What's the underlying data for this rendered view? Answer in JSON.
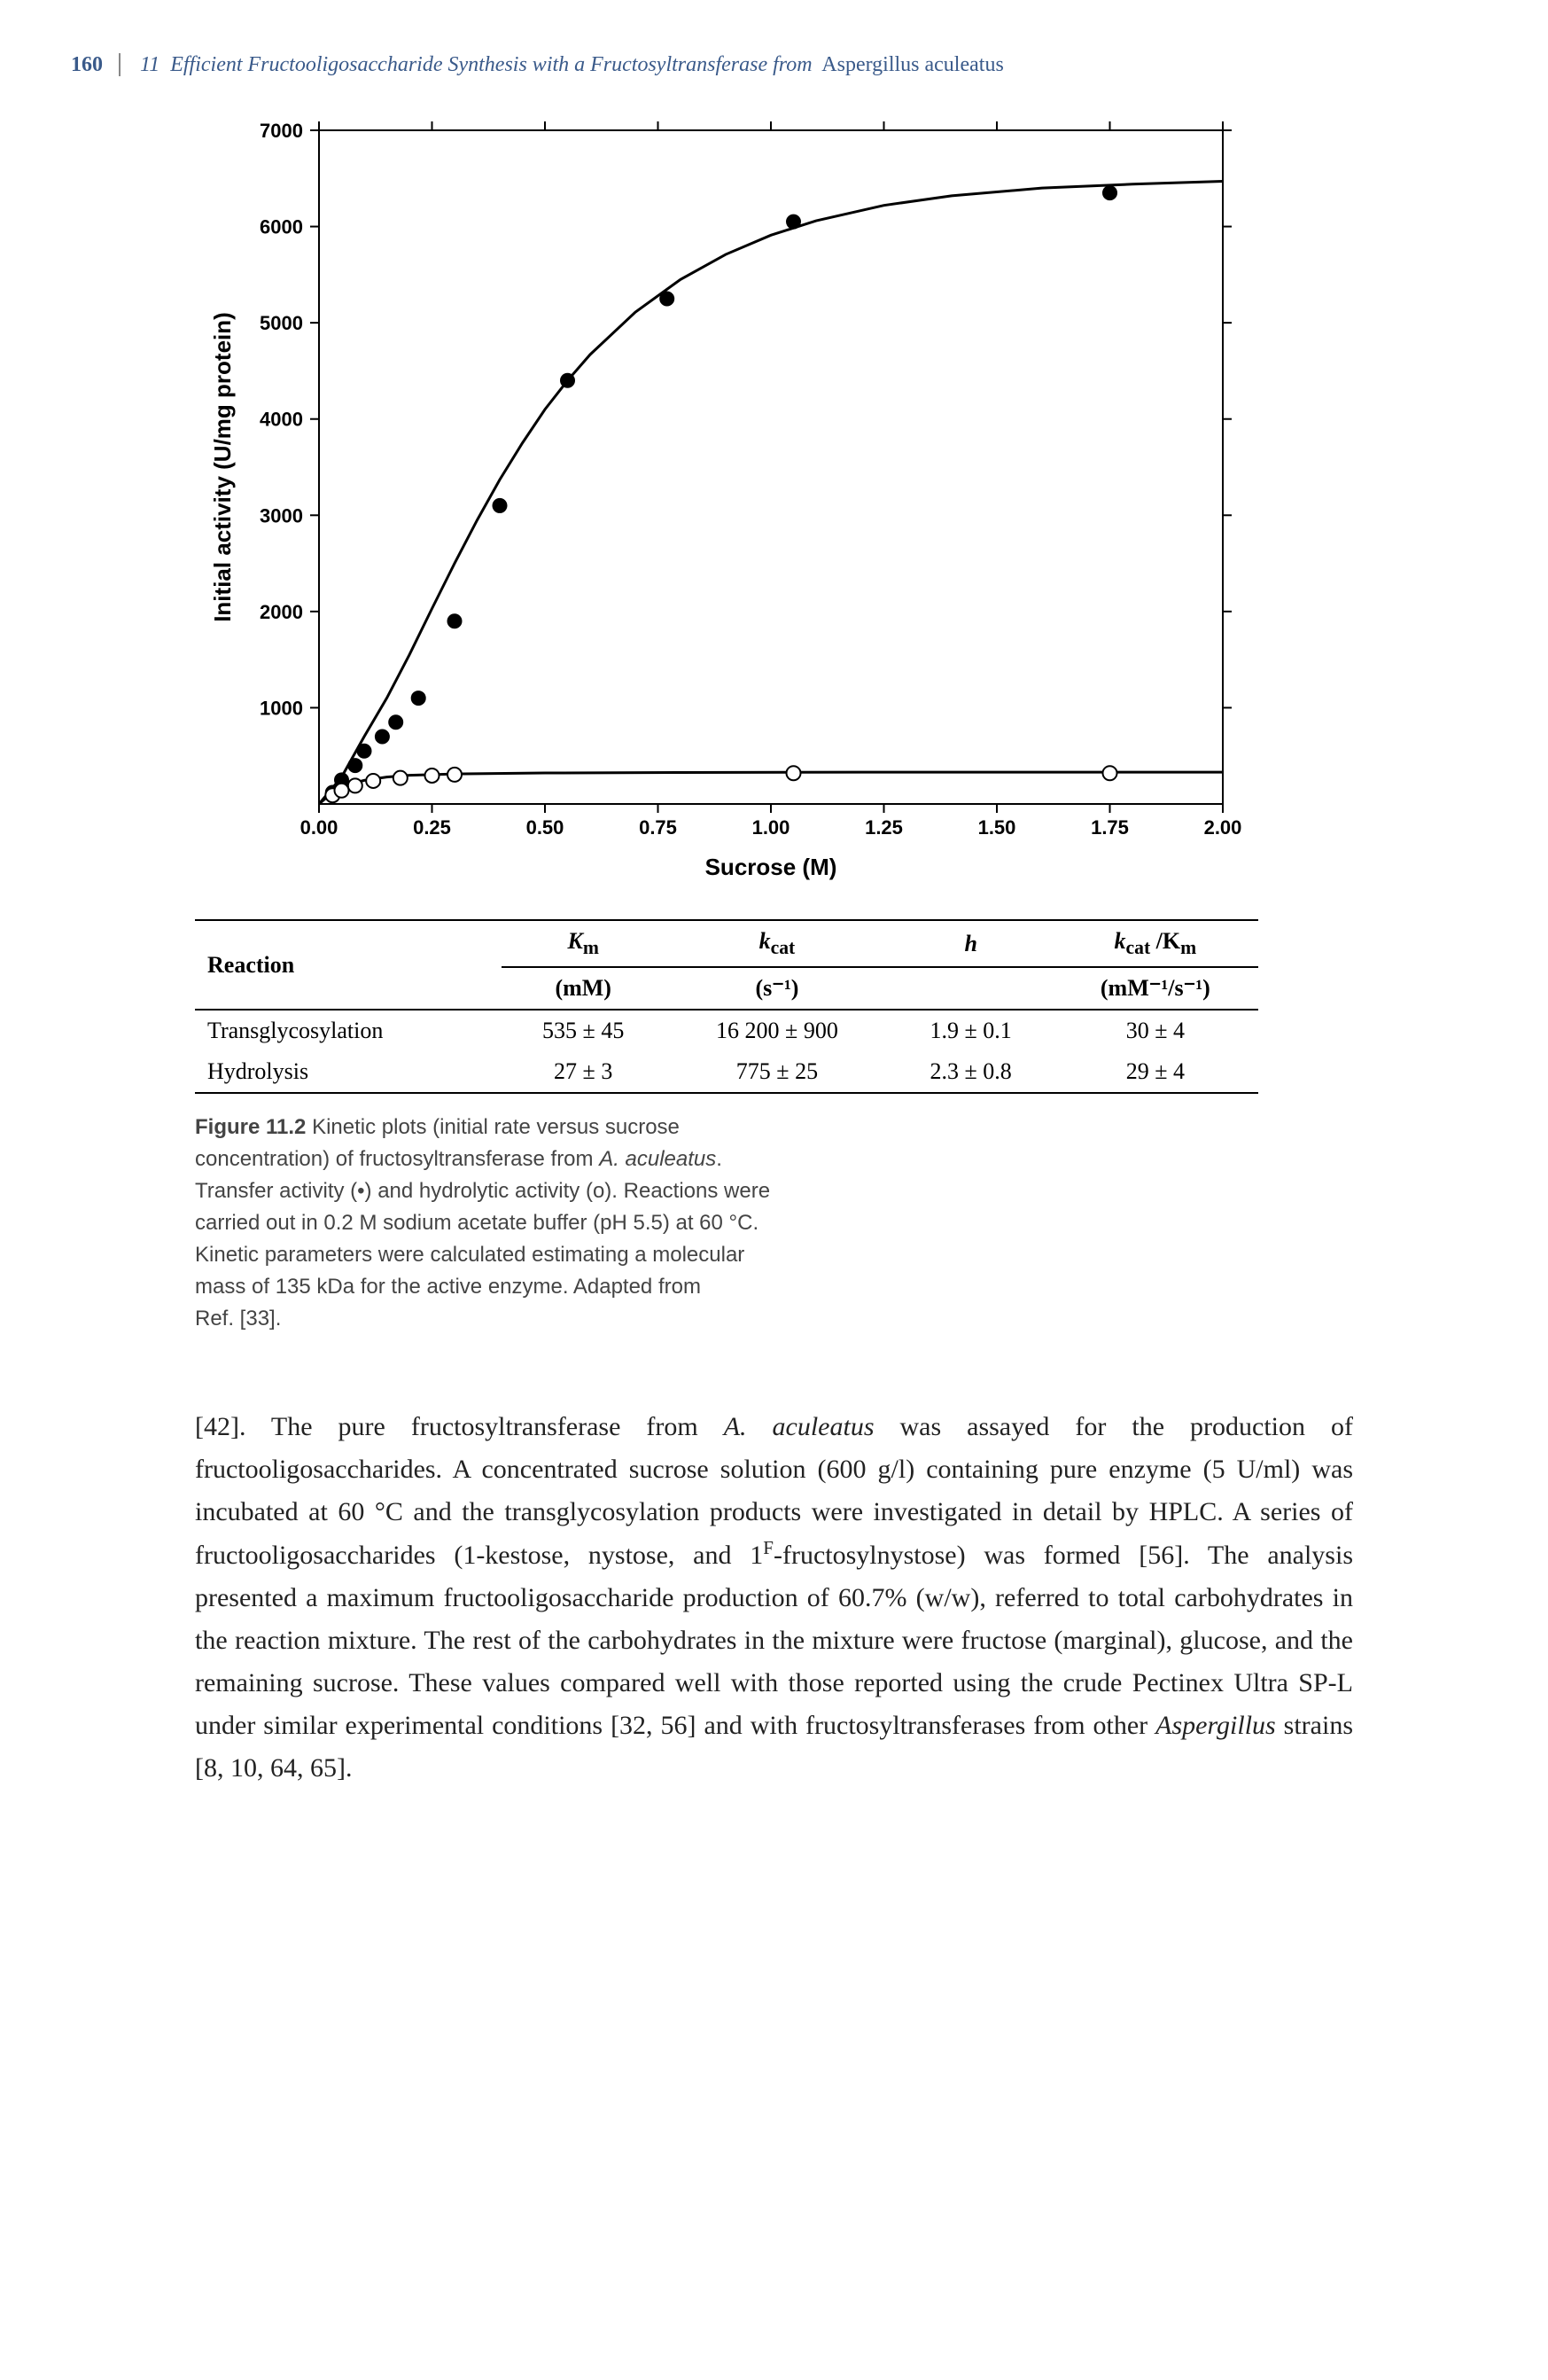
{
  "header": {
    "page_number": "160",
    "chapter_number": "11",
    "chapter_title": "Efficient Fructooligosaccharide Synthesis with a Fructosyltransferase from",
    "species": "Aspergillus aculeatus"
  },
  "chart": {
    "type": "scatter-line",
    "xlabel": "Sucrose (M)",
    "ylabel": "Initial activity (U/mg protein)",
    "xlim": [
      0.0,
      2.0
    ],
    "ylim": [
      0,
      7000
    ],
    "xticks": [
      0.0,
      0.25,
      0.5,
      0.75,
      1.0,
      1.25,
      1.5,
      1.75,
      2.0
    ],
    "xtick_labels": [
      "0.00",
      "0.25",
      "0.50",
      "0.75",
      "1.00",
      "1.25",
      "1.50",
      "1.75",
      "2.00"
    ],
    "yticks": [
      1000,
      2000,
      3000,
      4000,
      5000,
      6000,
      7000
    ],
    "ytick_labels": [
      "1000",
      "2000",
      "3000",
      "4000",
      "5000",
      "6000",
      "7000"
    ],
    "plot_bg": "#ffffff",
    "axis_color": "#000000",
    "tick_fontsize": 22,
    "label_fontsize": 26,
    "label_fontweight": "bold",
    "marker_size": 8,
    "line_width": 3,
    "series_filled": {
      "name": "Transfer activity",
      "marker": "filled-circle",
      "color": "#000000",
      "points": [
        [
          0.03,
          120
        ],
        [
          0.05,
          250
        ],
        [
          0.08,
          400
        ],
        [
          0.1,
          550
        ],
        [
          0.14,
          700
        ],
        [
          0.17,
          850
        ],
        [
          0.22,
          1100
        ],
        [
          0.3,
          1900
        ],
        [
          0.4,
          3100
        ],
        [
          0.55,
          4400
        ],
        [
          0.77,
          5250
        ],
        [
          1.05,
          6050
        ],
        [
          1.75,
          6350
        ]
      ]
    },
    "series_open": {
      "name": "Hydrolytic activity",
      "marker": "open-circle",
      "color": "#000000",
      "points": [
        [
          0.03,
          90
        ],
        [
          0.05,
          140
        ],
        [
          0.08,
          190
        ],
        [
          0.12,
          240
        ],
        [
          0.18,
          270
        ],
        [
          0.25,
          295
        ],
        [
          0.3,
          305
        ],
        [
          1.05,
          320
        ],
        [
          1.75,
          320
        ]
      ]
    },
    "fitted_curves": {
      "filled": [
        [
          0.0,
          0
        ],
        [
          0.05,
          280
        ],
        [
          0.1,
          700
        ],
        [
          0.15,
          1100
        ],
        [
          0.2,
          1550
        ],
        [
          0.25,
          2030
        ],
        [
          0.3,
          2500
        ],
        [
          0.35,
          2950
        ],
        [
          0.4,
          3370
        ],
        [
          0.45,
          3750
        ],
        [
          0.5,
          4100
        ],
        [
          0.55,
          4400
        ],
        [
          0.6,
          4670
        ],
        [
          0.7,
          5110
        ],
        [
          0.8,
          5450
        ],
        [
          0.9,
          5710
        ],
        [
          1.0,
          5910
        ],
        [
          1.1,
          6060
        ],
        [
          1.25,
          6220
        ],
        [
          1.4,
          6320
        ],
        [
          1.6,
          6400
        ],
        [
          1.8,
          6440
        ],
        [
          2.0,
          6470
        ]
      ],
      "open": [
        [
          0.0,
          0
        ],
        [
          0.02,
          80
        ],
        [
          0.04,
          140
        ],
        [
          0.06,
          185
        ],
        [
          0.08,
          220
        ],
        [
          0.1,
          245
        ],
        [
          0.15,
          280
        ],
        [
          0.2,
          298
        ],
        [
          0.3,
          312
        ],
        [
          0.5,
          322
        ],
        [
          0.8,
          327
        ],
        [
          1.2,
          330
        ],
        [
          1.6,
          331
        ],
        [
          2.0,
          331
        ]
      ]
    }
  },
  "table": {
    "columns": [
      {
        "main": "Reaction",
        "unit": ""
      },
      {
        "main": "K",
        "sub": "m",
        "unit": "(mM)"
      },
      {
        "main": "k",
        "sub": "cat",
        "unit": "(s⁻¹)"
      },
      {
        "main": "h",
        "unit": ""
      },
      {
        "main": "k",
        "sub": "cat",
        "extra": " /K",
        "extra_sub": "m",
        "unit": "(mM⁻¹/s⁻¹)"
      }
    ],
    "rows": [
      [
        "Transglycosylation",
        "535 ± 45",
        "16 200 ± 900",
        "1.9 ± 0.1",
        "30 ± 4"
      ],
      [
        "Hydrolysis",
        "27 ± 3",
        "775 ± 25",
        "2.3 ± 0.8",
        "29 ± 4"
      ]
    ]
  },
  "caption": {
    "fig_label": "Figure 11.2",
    "line1": "Kinetic plots (initial rate versus sucrose",
    "line2a": "concentration) of fructosyltransferase from ",
    "line2b": "A. aculeatus",
    "line2c": ".",
    "line3": "Transfer activity (•) and hydrolytic activity (o). Reactions were",
    "line4": "carried out in 0.2 M sodium acetate buffer (pH 5.5) at 60 °C.",
    "line5": "Kinetic parameters were calculated estimating a molecular",
    "line6": "mass of 135 kDa for the active enzyme. Adapted from",
    "line7": "Ref. [33]."
  },
  "body": {
    "p1a": "[42]. The pure fructosyltransferase from ",
    "p1b": "A. aculeatus",
    "p1c": " was assayed for the production of fructooligosaccharides. A concentrated sucrose solution (600 g/l) containing pure enzyme (5 U/ml) was incubated at 60 °C and the transglycosylation products were investigated in detail by HPLC. A series of fructooligosaccharides (1-kestose, nystose, and 1",
    "p1d": "F",
    "p1e": "-fructosylnystose) was formed [56]. The analysis presented a maximum fructooligosaccharide production of 60.7% (w/w), referred to total carbohydrates in the reaction mixture. The rest of the carbohydrates in the mixture were fructose (marginal), glucose, and the remaining sucrose. These values compared well with those reported using the crude Pectinex Ultra SP-L under similar experimental conditions [32, 56] and with fructosyltransferases from other ",
    "p1f": "Aspergillus",
    "p1g": " strains [8, 10, 64, 65]."
  }
}
